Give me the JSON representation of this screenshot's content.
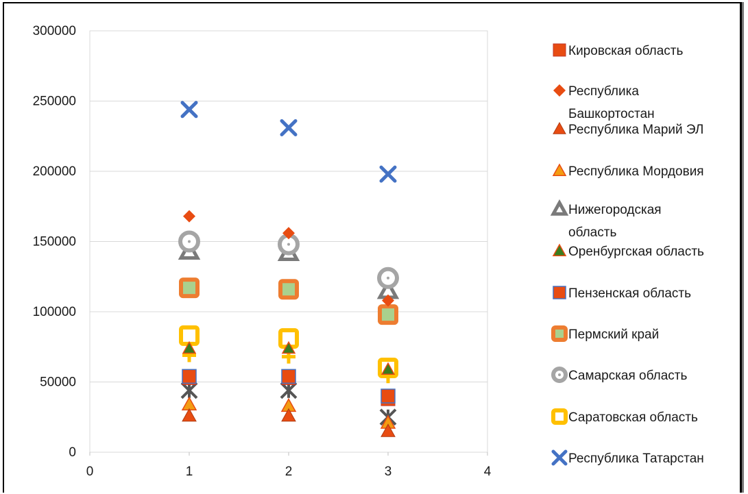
{
  "chart_data": {
    "type": "scatter",
    "title": "",
    "xlabel": "",
    "ylabel": "",
    "xlim": [
      0,
      4
    ],
    "ylim": [
      0,
      300000
    ],
    "xticks": [
      "0",
      "1",
      "2",
      "3",
      "4"
    ],
    "yticks": [
      "0",
      "50000",
      "100000",
      "150000",
      "200000",
      "250000",
      "300000"
    ],
    "grid": "horizontal",
    "legend_position": "right",
    "series": [
      {
        "name": "Кировская область",
        "marker": "square",
        "color": "#e84c12",
        "x": [
          1,
          2,
          3
        ],
        "y": [
          53000,
          53000,
          38000
        ]
      },
      {
        "name": "Республика Башкортостан",
        "marker": "diamond",
        "color": "#e84c12",
        "x": [
          1,
          2,
          3
        ],
        "y": [
          168000,
          156000,
          108000
        ]
      },
      {
        "name": "Республика Марий ЭЛ",
        "marker": "triangle",
        "color": "#e84c12",
        "x": [
          1,
          2,
          3
        ],
        "y": [
          26000,
          26000,
          15000
        ]
      },
      {
        "name": "Республика Мордовия",
        "marker": "triangle-orange",
        "color": "#f39c12",
        "x": [
          1,
          2,
          3
        ],
        "y": [
          34000,
          33000,
          21000
        ]
      },
      {
        "name": "Нижегородская область",
        "marker": "triangle-hollow",
        "color": "#7a7a7a",
        "x": [
          1,
          2,
          3
        ],
        "y": [
          143000,
          142000,
          115000
        ]
      },
      {
        "name": "Оренбургская область",
        "marker": "triangle-green",
        "color": "#3a7d1f",
        "x": [
          1,
          2,
          3
        ],
        "y": [
          74000,
          74000,
          59000
        ]
      },
      {
        "name": "Пензенская область",
        "marker": "square-blue",
        "color": "#e84c12",
        "x": [
          1,
          2,
          3
        ],
        "y": [
          54000,
          54000,
          40000
        ]
      },
      {
        "name": "Пермский край",
        "marker": "square-hollow",
        "color": "#ed7d31",
        "x": [
          1,
          2,
          3
        ],
        "y": [
          117000,
          116000,
          98000
        ]
      },
      {
        "name": "Самарская область",
        "marker": "circle-hollow",
        "color": "#a5a5a5",
        "x": [
          1,
          2,
          3
        ],
        "y": [
          150000,
          148000,
          124000
        ]
      },
      {
        "name": "Саратовская область",
        "marker": "square-hollow-yellow",
        "color": "#ffc000",
        "x": [
          1,
          2,
          3
        ],
        "y": [
          83000,
          81000,
          60000
        ]
      },
      {
        "name": "Республика Татарстан",
        "marker": "x",
        "color": "#4472c4",
        "x": [
          1,
          2,
          3
        ],
        "y": [
          244000,
          231000,
          198000
        ]
      },
      {
        "name": "",
        "marker": "plus",
        "color": "#ffc000",
        "x": [
          1,
          2,
          3
        ],
        "y": [
          69000,
          68000,
          54000
        ],
        "in_legend": false
      },
      {
        "name": "",
        "marker": "asterisk",
        "color": "#555555",
        "x": [
          1,
          2,
          3
        ],
        "y": [
          44000,
          44000,
          25000
        ],
        "in_legend": false
      }
    ]
  }
}
